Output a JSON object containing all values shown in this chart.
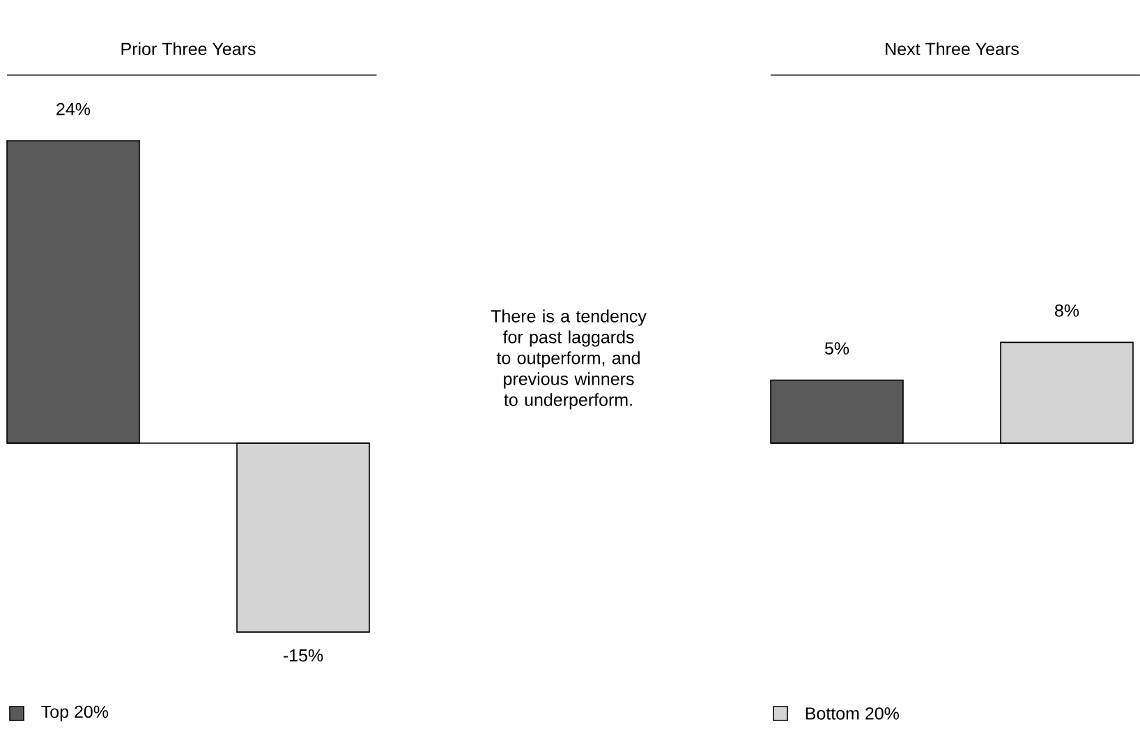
{
  "chart_data": [
    {
      "type": "bar",
      "title": "Prior Three Years",
      "categories": [
        null
      ],
      "legend": "bottom",
      "series": [
        {
          "name": "Top 20%",
          "color": "#5a5a5a",
          "values": [
            24
          ],
          "value_labels": [
            "24%"
          ]
        },
        {
          "color": "#d4d4d4",
          "values": [
            -15
          ],
          "value_labels": [
            "-15%"
          ]
        }
      ]
    },
    {
      "type": "other",
      "annotations": [
        "There is a tendency for past laggards to outperform, and previous winners to underperform."
      ]
    },
    {
      "type": "bar",
      "title": "Next Three Years",
      "categories": [
        null
      ],
      "legend": "bottom",
      "series": [
        {
          "color": "#5a5a5a",
          "values": [
            5
          ],
          "value_labels": [
            "5%"
          ]
        },
        {
          "name": "Bottom 20%",
          "color": "#d4d4d4",
          "values": [
            8
          ],
          "value_labels": [
            "8%"
          ]
        }
      ]
    }
  ]
}
